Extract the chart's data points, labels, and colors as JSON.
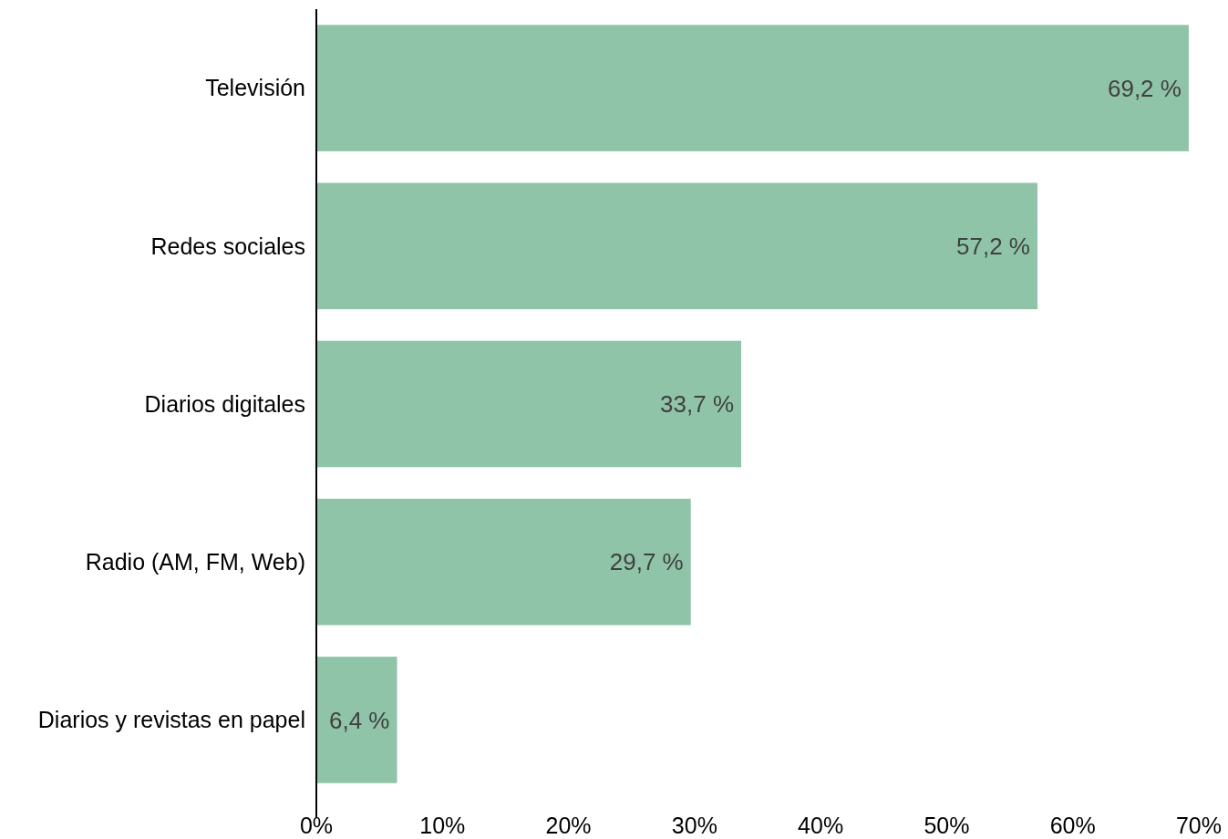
{
  "chart_data": {
    "type": "bar",
    "orientation": "horizontal",
    "categories": [
      "Televisión",
      "Redes sociales",
      "Diarios digitales",
      "Radio (AM, FM, Web)",
      "Diarios y revistas en papel"
    ],
    "values": [
      69.2,
      57.2,
      33.7,
      29.7,
      6.4
    ],
    "value_labels": [
      "69,2 %",
      "57,2 %",
      "33,7 %",
      "29,7 %",
      "6,4 %"
    ],
    "color": "#8fc4a8",
    "xlim": [
      0,
      70
    ],
    "xticks": [
      {
        "value": 0,
        "label": "0%"
      },
      {
        "value": 10,
        "label": "10%"
      },
      {
        "value": 20,
        "label": "20%"
      },
      {
        "value": 30,
        "label": "30%"
      },
      {
        "value": 40,
        "label": "40%"
      },
      {
        "value": 50,
        "label": "50%"
      },
      {
        "value": 60,
        "label": "60%"
      },
      {
        "value": 70,
        "label": "70%"
      }
    ],
    "grid": false
  }
}
